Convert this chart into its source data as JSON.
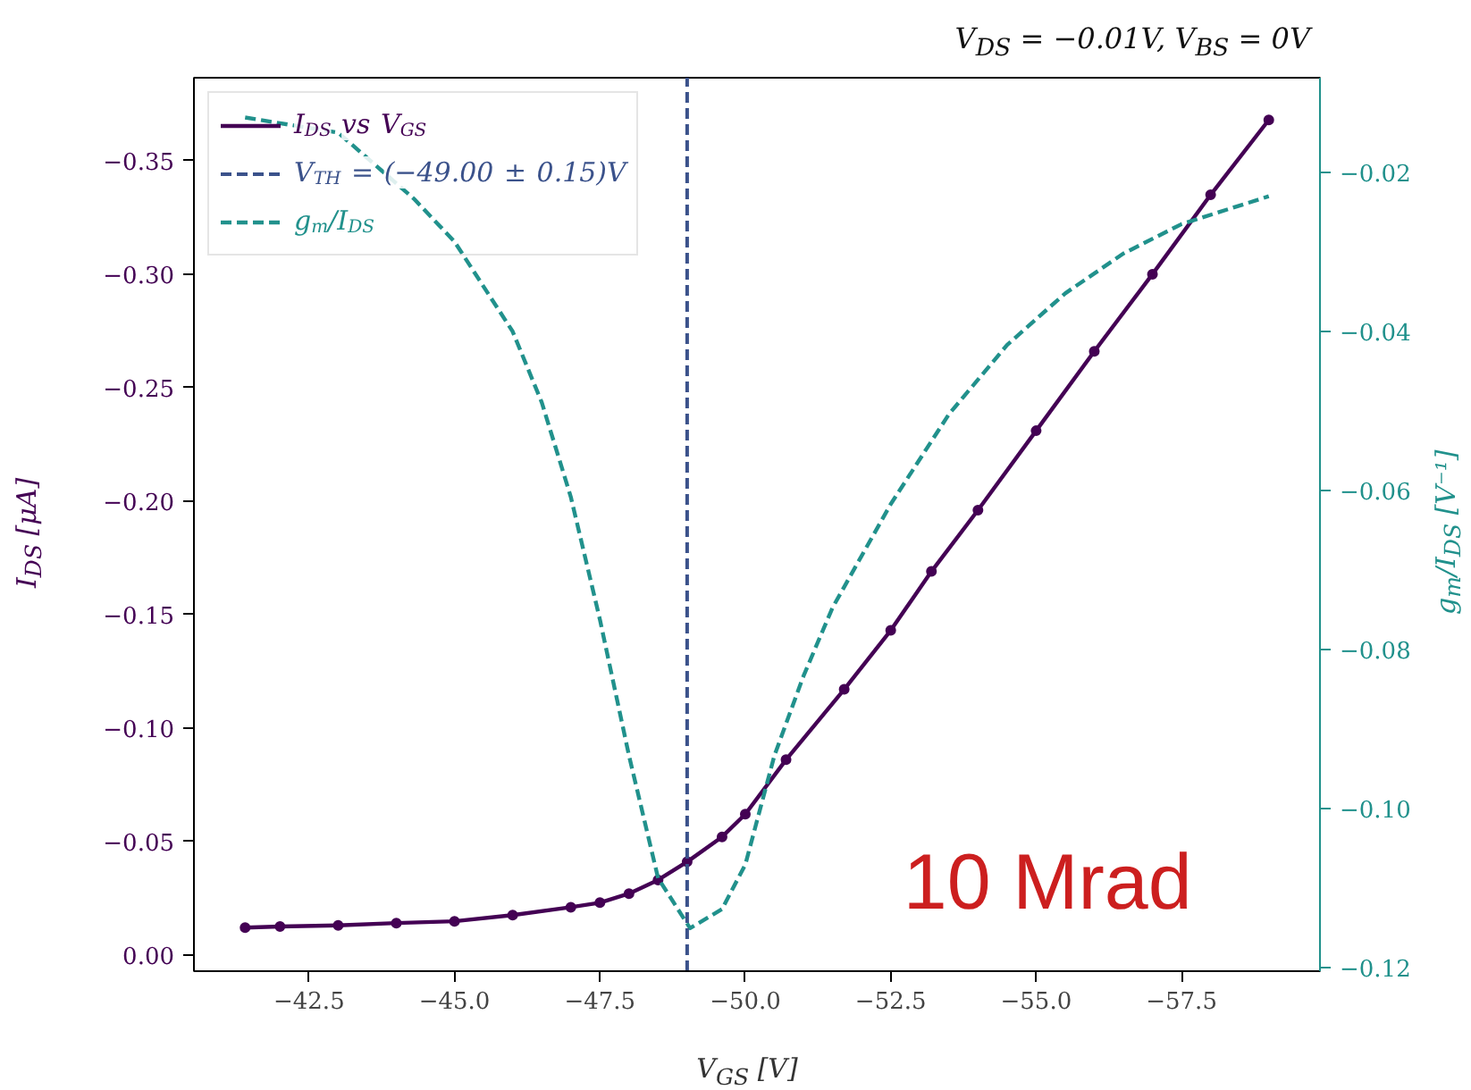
{
  "chart_data": {
    "type": "line",
    "title": "V$_{DS}$ = −0.01V, V$_{BS}$ = 0V",
    "xlabel": "V$_{GS}$ [V]",
    "ylabel": "I$_{DS}$ [μA]",
    "y2label": "g$_{m}$/I$_{DS}$ [V⁻¹]",
    "xlim": [
      -40.52,
      -59.88
    ],
    "ylim": [
      0.0072,
      -0.3866
    ],
    "y2lim": [
      -0.1204,
      -0.0081
    ],
    "xticks": [
      {
        "value": -42.5,
        "label": "−42.5"
      },
      {
        "value": -45.0,
        "label": "−45.0"
      },
      {
        "value": -47.5,
        "label": "−47.5"
      },
      {
        "value": -50.0,
        "label": "−50.0"
      },
      {
        "value": -52.5,
        "label": "−52.5"
      },
      {
        "value": -55.0,
        "label": "−55.0"
      },
      {
        "value": -57.5,
        "label": "−57.5"
      }
    ],
    "yticks": [
      {
        "value": 0.0,
        "label": "0.00"
      },
      {
        "value": -0.05,
        "label": "−0.05"
      },
      {
        "value": -0.1,
        "label": "−0.10"
      },
      {
        "value": -0.15,
        "label": "−0.15"
      },
      {
        "value": -0.2,
        "label": "−0.20"
      },
      {
        "value": -0.25,
        "label": "−0.25"
      },
      {
        "value": -0.3,
        "label": "−0.30"
      },
      {
        "value": -0.35,
        "label": "−0.35"
      }
    ],
    "y2ticks": [
      {
        "value": -0.02,
        "label": "−0.02"
      },
      {
        "value": -0.04,
        "label": "−0.04"
      },
      {
        "value": -0.06,
        "label": "−0.06"
      },
      {
        "value": -0.08,
        "label": "−0.08"
      },
      {
        "value": -0.1,
        "label": "−0.10"
      },
      {
        "value": -0.12,
        "label": "−0.12"
      }
    ],
    "series": [
      {
        "name": "I$_{DS}$ vs V$_{GS}$",
        "color": "#440154",
        "marker": "circle",
        "line_style": "solid",
        "x": [
          -41.4,
          -42.0,
          -43.0,
          -44.0,
          -45.0,
          -46.0,
          -47.0,
          -47.5,
          -48.0,
          -48.5,
          -49.0,
          -49.6,
          -50.0,
          -50.7,
          -51.7,
          -52.5,
          -53.2,
          -54.0,
          -55.0,
          -56.0,
          -57.0,
          -58.0,
          -59.0
        ],
        "values": [
          -0.012,
          -0.0125,
          -0.013,
          -0.014,
          -0.0148,
          -0.0175,
          -0.021,
          -0.023,
          -0.027,
          -0.033,
          -0.041,
          -0.052,
          -0.062,
          -0.086,
          -0.117,
          -0.143,
          -0.169,
          -0.196,
          -0.231,
          -0.266,
          -0.3,
          -0.335,
          -0.368
        ]
      },
      {
        "name": "g$_{m}$/I$_{DS}$",
        "color": "#21918c",
        "marker": "none",
        "line_style": "dashed",
        "axis": "y2",
        "x": [
          -41.4,
          -43.0,
          -44.3,
          -45.0,
          -46.0,
          -46.5,
          -47.0,
          -47.5,
          -48.0,
          -48.5,
          -49.05,
          -49.6,
          -50.0,
          -50.5,
          -51.0,
          -51.5,
          -52.5,
          -53.5,
          -54.5,
          -55.5,
          -56.5,
          -57.5,
          -59.0
        ],
        "values": [
          -0.0131,
          -0.015,
          -0.0233,
          -0.0287,
          -0.04,
          -0.0489,
          -0.0608,
          -0.0762,
          -0.0933,
          -0.1087,
          -0.115,
          -0.1126,
          -0.107,
          -0.0933,
          -0.0833,
          -0.0747,
          -0.0617,
          -0.0504,
          -0.0417,
          -0.0352,
          -0.0302,
          -0.0265,
          -0.023
        ]
      }
    ],
    "ref_lines": [
      {
        "axis": "x",
        "value": -49.0,
        "label": "V$_{TH}$ = (−49.00 ± 0.15)V",
        "color": "#3b528b",
        "line_style": "dashed"
      }
    ],
    "annotations": [
      "10 Mrad"
    ],
    "legend": "top left",
    "grid": false
  }
}
